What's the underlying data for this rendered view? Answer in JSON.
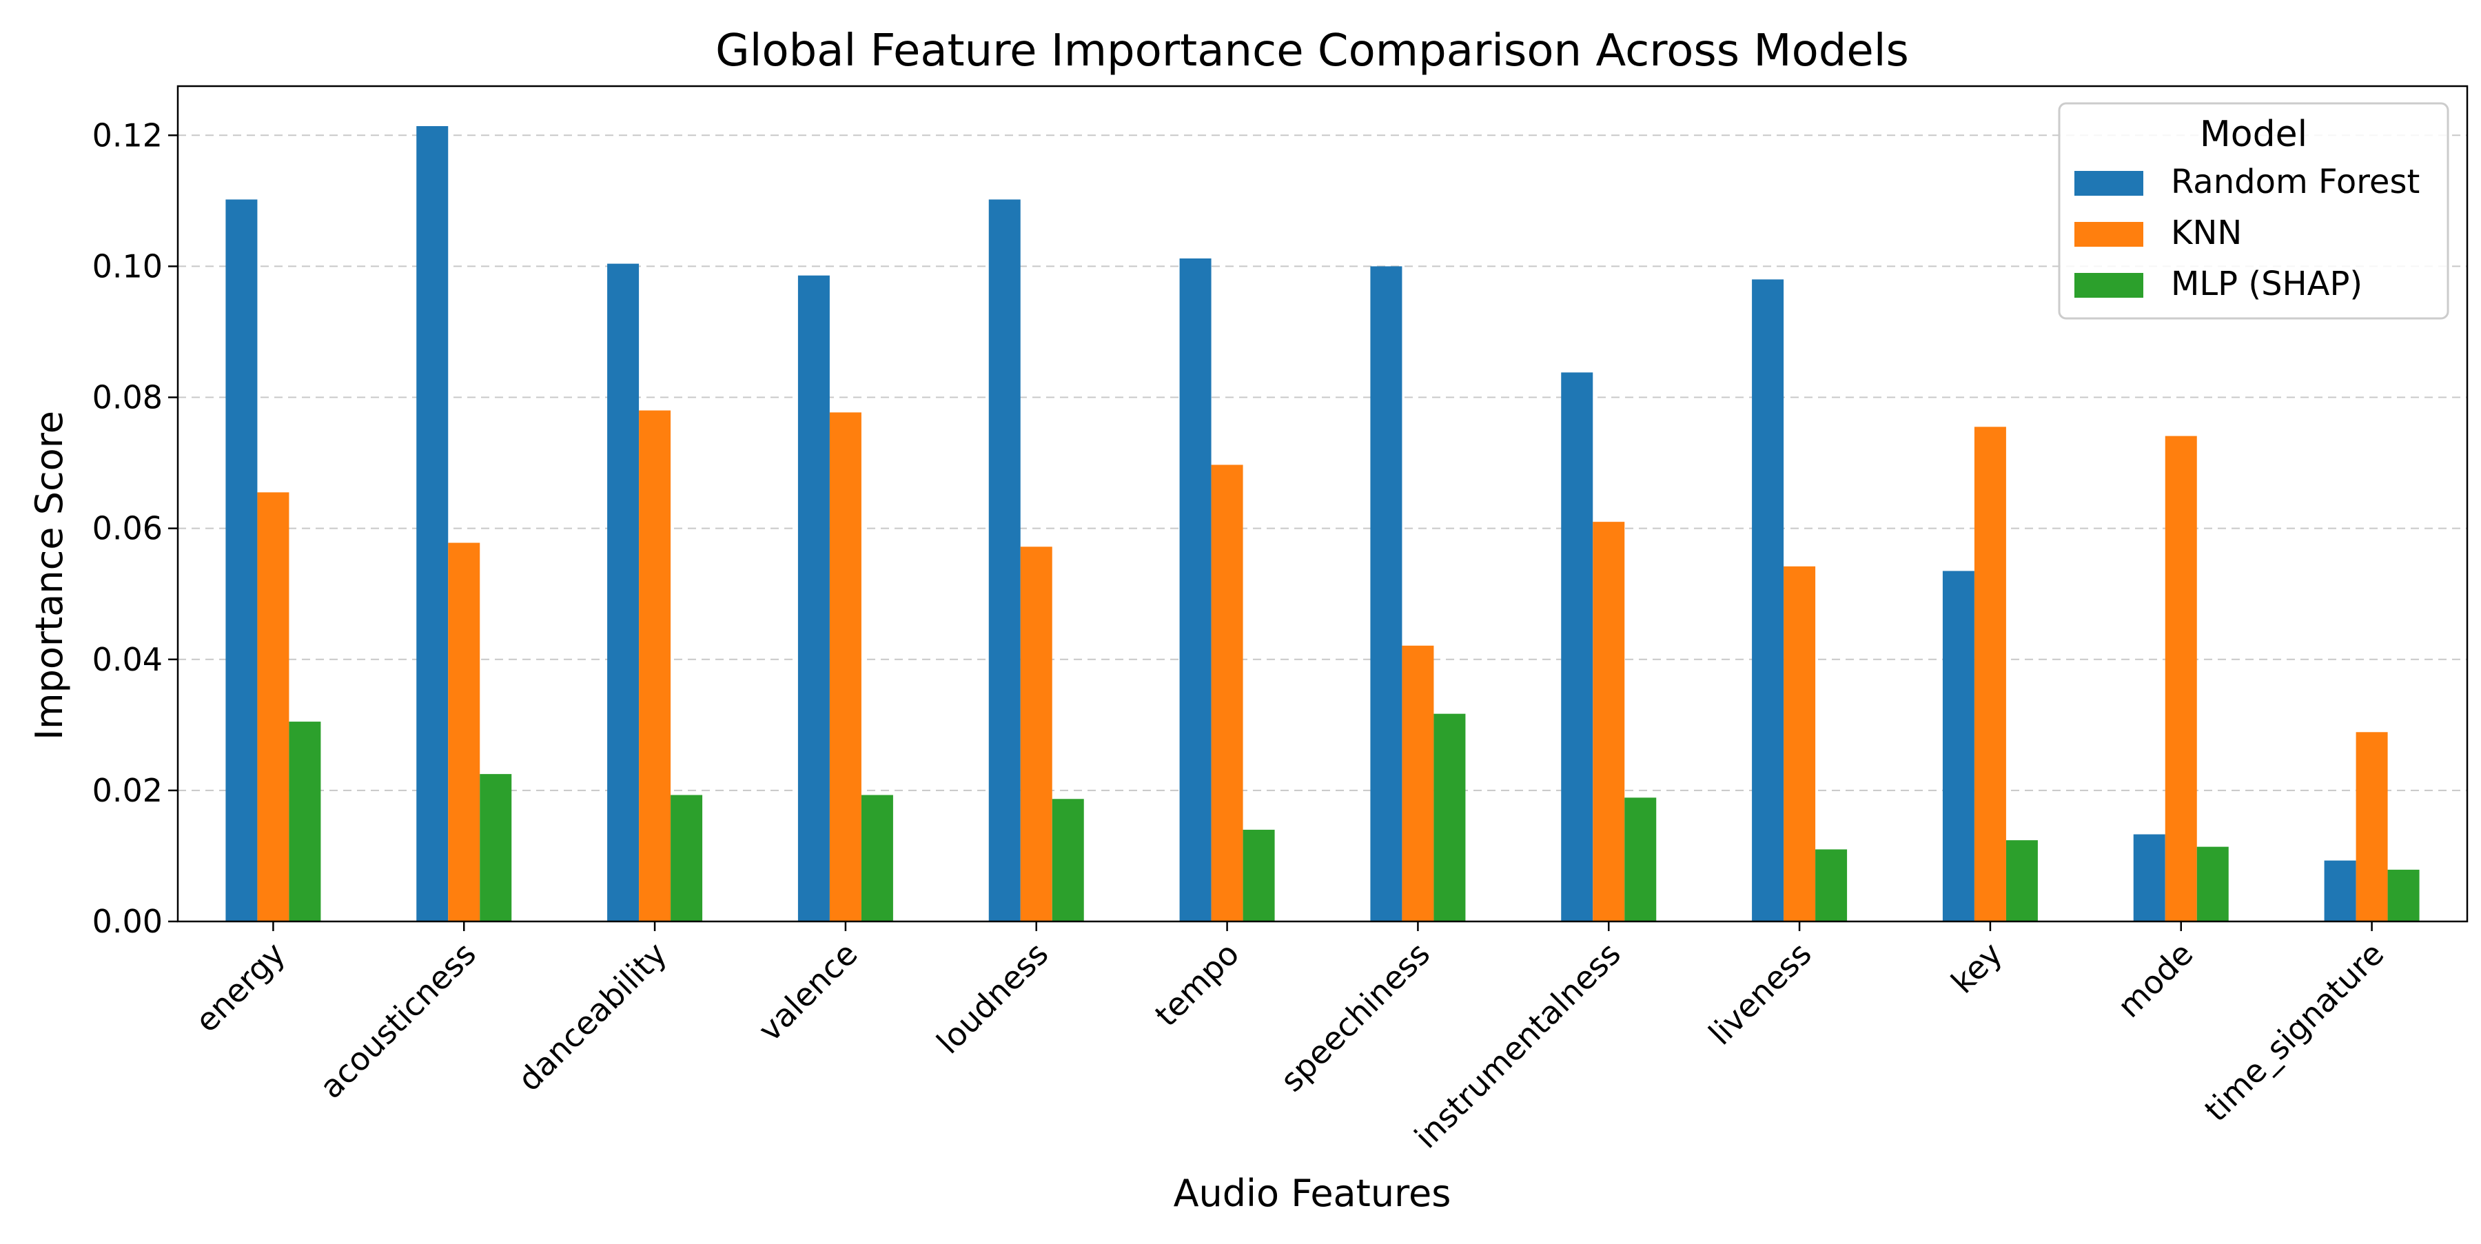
{
  "chart_data": {
    "type": "bar",
    "title": "Global Feature Importance Comparison Across Models",
    "xlabel": "Audio Features",
    "ylabel": "Importance Score",
    "categories": [
      "energy",
      "acousticness",
      "danceability",
      "valence",
      "loudness",
      "tempo",
      "speechiness",
      "instrumentalness",
      "liveness",
      "key",
      "mode",
      "time_signature"
    ],
    "series": [
      {
        "name": "Random Forest",
        "color": "#1f77b4",
        "values": [
          0.1102,
          0.1214,
          0.1004,
          0.0986,
          0.1102,
          0.1012,
          0.1,
          0.0838,
          0.098,
          0.0535,
          0.0133,
          0.0093
        ]
      },
      {
        "name": "KNN",
        "color": "#ff7f0e",
        "values": [
          0.0655,
          0.0578,
          0.078,
          0.0777,
          0.0572,
          0.0697,
          0.0421,
          0.061,
          0.0542,
          0.0755,
          0.0741,
          0.0289
        ]
      },
      {
        "name": "MLP (SHAP)",
        "color": "#2ca02c",
        "values": [
          0.0305,
          0.0225,
          0.0193,
          0.0193,
          0.0187,
          0.014,
          0.0317,
          0.0189,
          0.011,
          0.0124,
          0.0114,
          0.0079
        ]
      }
    ],
    "yticks": [
      "0.00",
      "0.02",
      "0.04",
      "0.06",
      "0.08",
      "0.10",
      "0.12"
    ],
    "ylim": [
      0,
      0.1275
    ],
    "grid": "y-dashed",
    "legend": {
      "title": "Model",
      "placement": "top-right"
    }
  }
}
